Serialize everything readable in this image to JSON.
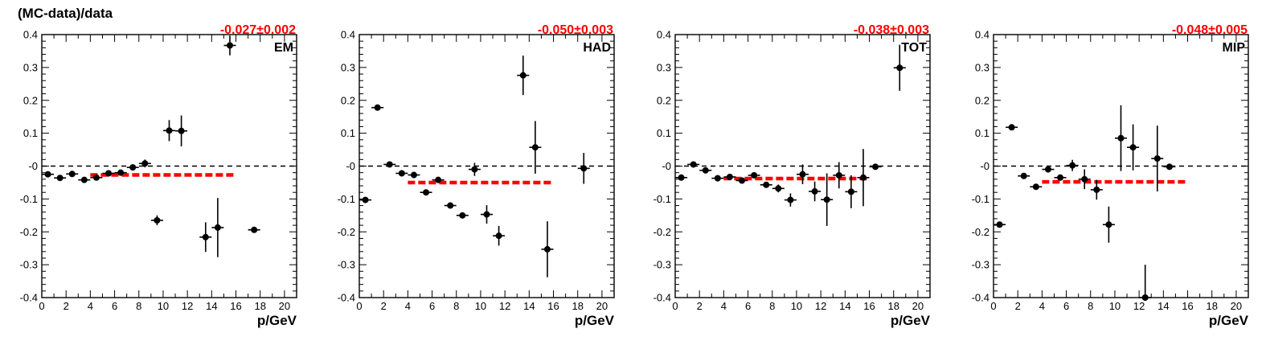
{
  "figure": {
    "ylabel": "(MC-data)/data"
  },
  "chart_data": [
    {
      "type": "scatter",
      "label": "EM",
      "fit_text": "-0.027±0.002",
      "xlabel": "p/GeV",
      "xlim": [
        0,
        21
      ],
      "ylim": [
        -0.4,
        0.4
      ],
      "xticks": [
        0,
        2,
        4,
        6,
        8,
        10,
        12,
        14,
        16,
        18,
        20
      ],
      "yticks": [
        "-0.4",
        "-0.3",
        "-0.2",
        "-0.1",
        "-0",
        "0.1",
        "0.2",
        "0.3",
        "0.4"
      ],
      "reference_line": 0,
      "fit": {
        "value": -0.027,
        "x_range": [
          4,
          16
        ]
      },
      "points": [
        {
          "x": 0.5,
          "y": -0.025,
          "err": 0.005
        },
        {
          "x": 1.5,
          "y": -0.036,
          "err": 0.005
        },
        {
          "x": 2.5,
          "y": -0.024,
          "err": 0.005
        },
        {
          "x": 3.5,
          "y": -0.042,
          "err": 0.005
        },
        {
          "x": 4.5,
          "y": -0.035,
          "err": 0.005
        },
        {
          "x": 5.5,
          "y": -0.022,
          "err": 0.005
        },
        {
          "x": 6.5,
          "y": -0.02,
          "err": 0.005
        },
        {
          "x": 7.5,
          "y": -0.004,
          "err": 0.007
        },
        {
          "x": 8.5,
          "y": 0.008,
          "err": 0.012
        },
        {
          "x": 9.5,
          "y": -0.165,
          "err": 0.015
        },
        {
          "x": 10.5,
          "y": 0.108,
          "err": 0.032
        },
        {
          "x": 11.5,
          "y": 0.107,
          "err": 0.047
        },
        {
          "x": 13.5,
          "y": -0.216,
          "err": 0.045
        },
        {
          "x": 14.5,
          "y": -0.187,
          "err": 0.09
        },
        {
          "x": 15.5,
          "y": 0.367,
          "err": 0.03
        },
        {
          "x": 17.5,
          "y": -0.194,
          "err": 0.005
        }
      ]
    },
    {
      "type": "scatter",
      "label": "HAD",
      "fit_text": "-0.050±0.003",
      "xlabel": "p/GeV",
      "xlim": [
        0,
        21
      ],
      "ylim": [
        -0.4,
        0.4
      ],
      "xticks": [
        0,
        2,
        4,
        6,
        8,
        10,
        12,
        14,
        16,
        18,
        20
      ],
      "yticks": [
        "-0.4",
        "-0.3",
        "-0.2",
        "-0.1",
        "-0",
        "0.1",
        "0.2",
        "0.3",
        "0.4"
      ],
      "reference_line": 0,
      "fit": {
        "value": -0.05,
        "x_range": [
          4,
          16
        ]
      },
      "points": [
        {
          "x": 0.5,
          "y": -0.103,
          "err": 0.005
        },
        {
          "x": 1.5,
          "y": 0.178,
          "err": 0.005
        },
        {
          "x": 2.5,
          "y": 0.005,
          "err": 0.005
        },
        {
          "x": 3.5,
          "y": -0.022,
          "err": 0.005
        },
        {
          "x": 4.5,
          "y": -0.027,
          "err": 0.005
        },
        {
          "x": 5.5,
          "y": -0.08,
          "err": 0.005
        },
        {
          "x": 6.5,
          "y": -0.042,
          "err": 0.005
        },
        {
          "x": 7.5,
          "y": -0.12,
          "err": 0.006
        },
        {
          "x": 8.5,
          "y": -0.15,
          "err": 0.008
        },
        {
          "x": 9.5,
          "y": -0.01,
          "err": 0.02
        },
        {
          "x": 10.5,
          "y": -0.147,
          "err": 0.028
        },
        {
          "x": 11.5,
          "y": -0.212,
          "err": 0.03
        },
        {
          "x": 13.5,
          "y": 0.276,
          "err": 0.06
        },
        {
          "x": 14.5,
          "y": 0.057,
          "err": 0.08
        },
        {
          "x": 15.5,
          "y": -0.253,
          "err": 0.085
        },
        {
          "x": 18.5,
          "y": -0.007,
          "err": 0.047
        }
      ]
    },
    {
      "type": "scatter",
      "label": "TOT",
      "fit_text": "-0.038±0.003",
      "xlabel": "p/GeV",
      "xlim": [
        0,
        21
      ],
      "ylim": [
        -0.4,
        0.4
      ],
      "xticks": [
        0,
        2,
        4,
        6,
        8,
        10,
        12,
        14,
        16,
        18,
        20
      ],
      "yticks": [
        "-0.4",
        "-0.3",
        "-0.2",
        "-0.1",
        "-0",
        "0.1",
        "0.2",
        "0.3",
        "0.4"
      ],
      "reference_line": 0,
      "fit": {
        "value": -0.038,
        "x_range": [
          4,
          16
        ]
      },
      "points": [
        {
          "x": 0.5,
          "y": -0.035,
          "err": 0.005
        },
        {
          "x": 1.5,
          "y": 0.005,
          "err": 0.005
        },
        {
          "x": 2.5,
          "y": -0.013,
          "err": 0.005
        },
        {
          "x": 3.5,
          "y": -0.037,
          "err": 0.005
        },
        {
          "x": 4.5,
          "y": -0.033,
          "err": 0.005
        },
        {
          "x": 5.5,
          "y": -0.044,
          "err": 0.005
        },
        {
          "x": 6.5,
          "y": -0.028,
          "err": 0.005
        },
        {
          "x": 7.5,
          "y": -0.057,
          "err": 0.008
        },
        {
          "x": 8.5,
          "y": -0.068,
          "err": 0.012
        },
        {
          "x": 9.5,
          "y": -0.103,
          "err": 0.02
        },
        {
          "x": 10.5,
          "y": -0.025,
          "err": 0.03
        },
        {
          "x": 11.5,
          "y": -0.077,
          "err": 0.03
        },
        {
          "x": 12.5,
          "y": -0.102,
          "err": 0.08
        },
        {
          "x": 13.5,
          "y": -0.028,
          "err": 0.04
        },
        {
          "x": 14.5,
          "y": -0.078,
          "err": 0.05
        },
        {
          "x": 15.5,
          "y": -0.035,
          "err": 0.087
        },
        {
          "x": 16.5,
          "y": -0.002,
          "err": 0.005
        },
        {
          "x": 18.5,
          "y": 0.299,
          "err": 0.07
        }
      ]
    },
    {
      "type": "scatter",
      "label": "MIP",
      "fit_text": "-0.048±0.005",
      "xlabel": "p/GeV",
      "xlim": [
        0,
        21
      ],
      "ylim": [
        -0.4,
        0.4
      ],
      "xticks": [
        0,
        2,
        4,
        6,
        8,
        10,
        12,
        14,
        16,
        18,
        20
      ],
      "yticks": [
        "-0.4",
        "-0.3",
        "-0.2",
        "-0.1",
        "-0",
        "0.1",
        "0.2",
        "0.3",
        "0.4"
      ],
      "reference_line": 0,
      "fit": {
        "value": -0.048,
        "x_range": [
          4,
          16
        ]
      },
      "points": [
        {
          "x": 0.5,
          "y": -0.178,
          "err": 0.005
        },
        {
          "x": 1.5,
          "y": 0.118,
          "err": 0.005
        },
        {
          "x": 2.5,
          "y": -0.03,
          "err": 0.005
        },
        {
          "x": 3.5,
          "y": -0.063,
          "err": 0.005
        },
        {
          "x": 4.5,
          "y": -0.01,
          "err": 0.005
        },
        {
          "x": 5.5,
          "y": -0.035,
          "err": 0.006
        },
        {
          "x": 6.5,
          "y": 0.002,
          "err": 0.017
        },
        {
          "x": 7.5,
          "y": -0.04,
          "err": 0.03
        },
        {
          "x": 8.5,
          "y": -0.072,
          "err": 0.03
        },
        {
          "x": 9.5,
          "y": -0.178,
          "err": 0.055
        },
        {
          "x": 10.5,
          "y": 0.085,
          "err": 0.1
        },
        {
          "x": 11.5,
          "y": 0.057,
          "err": 0.07
        },
        {
          "x": 12.5,
          "y": -0.4,
          "err": 0.1
        },
        {
          "x": 13.5,
          "y": 0.023,
          "err": 0.1
        },
        {
          "x": 14.5,
          "y": -0.002,
          "err": 0.005
        }
      ]
    }
  ]
}
